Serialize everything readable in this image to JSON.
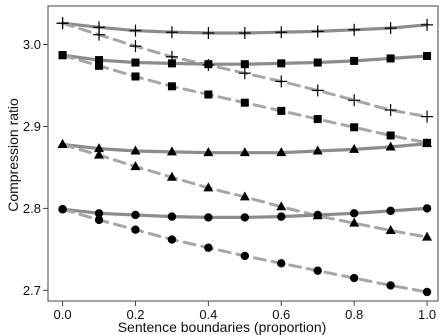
{
  "chart_data": {
    "type": "line",
    "title": "",
    "xlabel": "Sentence boundaries (proportion)",
    "ylabel": "Compression ratio",
    "xlim": [
      -0.04,
      1.03
    ],
    "ylim": [
      2.687,
      3.047
    ],
    "x_ticks": [
      0.0,
      0.2,
      0.4,
      0.6,
      0.8,
      1.0
    ],
    "x_tick_labels": [
      "0.0",
      "0.2",
      "0.4",
      "0.6",
      "0.8",
      "1.0"
    ],
    "y_ticks": [
      2.7,
      2.8,
      2.9,
      3.0
    ],
    "y_tick_labels": [
      "2.7",
      "2.8",
      "2.9",
      "3.0"
    ],
    "grid": false,
    "legend": "none",
    "colors": {
      "solid_line": "#8c8c8c",
      "dashed_line": "#a6a6a6",
      "marker": "#000000",
      "axis": "#444444"
    },
    "series": [
      {
        "marker": "plus",
        "style": "solid",
        "x": [
          0.0,
          0.1,
          0.2,
          0.3,
          0.4,
          0.5,
          0.6,
          0.7,
          0.8,
          0.9,
          1.0
        ],
        "y": [
          3.026,
          3.021,
          3.017,
          3.015,
          3.014,
          3.014,
          3.015,
          3.016,
          3.018,
          3.02,
          3.024
        ]
      },
      {
        "marker": "plus",
        "style": "dashed",
        "x": [
          0.0,
          0.1,
          0.2,
          0.3,
          0.4,
          0.5,
          0.6,
          0.7,
          0.8,
          0.9,
          1.0
        ],
        "y": [
          3.026,
          3.012,
          2.998,
          2.985,
          2.975,
          2.965,
          2.955,
          2.944,
          2.932,
          2.92,
          2.912
        ]
      },
      {
        "marker": "square",
        "style": "solid",
        "x": [
          0.0,
          0.1,
          0.2,
          0.3,
          0.4,
          0.5,
          0.6,
          0.7,
          0.8,
          0.9,
          1.0
        ],
        "y": [
          2.987,
          2.981,
          2.978,
          2.977,
          2.976,
          2.976,
          2.977,
          2.978,
          2.98,
          2.983,
          2.986
        ]
      },
      {
        "marker": "square",
        "style": "dashed",
        "x": [
          0.0,
          0.1,
          0.2,
          0.3,
          0.4,
          0.5,
          0.6,
          0.7,
          0.8,
          0.9,
          1.0
        ],
        "y": [
          2.987,
          2.974,
          2.961,
          2.949,
          2.939,
          2.929,
          2.919,
          2.909,
          2.899,
          2.889,
          2.88
        ]
      },
      {
        "marker": "triangle",
        "style": "solid",
        "x": [
          0.0,
          0.1,
          0.2,
          0.3,
          0.4,
          0.5,
          0.6,
          0.7,
          0.8,
          0.9,
          1.0
        ],
        "y": [
          2.878,
          2.873,
          2.87,
          2.869,
          2.868,
          2.868,
          2.868,
          2.87,
          2.872,
          2.875,
          2.879
        ]
      },
      {
        "marker": "triangle",
        "style": "dashed",
        "x": [
          0.0,
          0.1,
          0.2,
          0.3,
          0.4,
          0.5,
          0.6,
          0.7,
          0.8,
          0.9,
          1.0
        ],
        "y": [
          2.878,
          2.865,
          2.851,
          2.838,
          2.825,
          2.814,
          2.802,
          2.791,
          2.782,
          2.773,
          2.765
        ]
      },
      {
        "marker": "circle",
        "style": "solid",
        "x": [
          0.0,
          0.1,
          0.2,
          0.3,
          0.4,
          0.5,
          0.6,
          0.7,
          0.8,
          0.9,
          1.0
        ],
        "y": [
          2.799,
          2.794,
          2.792,
          2.79,
          2.789,
          2.789,
          2.79,
          2.792,
          2.794,
          2.797,
          2.8
        ]
      },
      {
        "marker": "circle",
        "style": "dashed",
        "x": [
          0.0,
          0.1,
          0.2,
          0.3,
          0.4,
          0.5,
          0.6,
          0.7,
          0.8,
          0.9,
          1.0
        ],
        "y": [
          2.799,
          2.786,
          2.774,
          2.762,
          2.752,
          2.742,
          2.733,
          2.724,
          2.715,
          2.706,
          2.698
        ]
      }
    ]
  }
}
